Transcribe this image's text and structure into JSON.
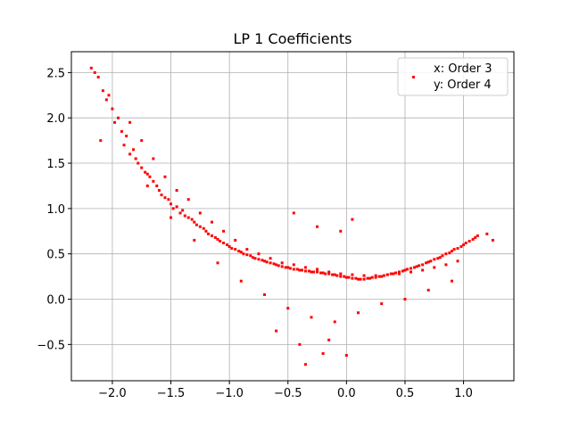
{
  "chart_data": {
    "type": "scatter",
    "title": "LP 1 Coefficients",
    "xlabel": "",
    "ylabel": "",
    "xlim": [
      -2.35,
      1.43
    ],
    "ylim": [
      -0.9,
      2.73
    ],
    "xticks": [
      -2.0,
      -1.5,
      -1.0,
      -0.5,
      0.0,
      0.5,
      1.0
    ],
    "xtick_labels": [
      "−2.0",
      "−1.5",
      "−1.0",
      "−0.5",
      "0.0",
      "0.5",
      "1.0"
    ],
    "yticks": [
      -0.5,
      0.0,
      0.5,
      1.0,
      1.5,
      2.0,
      2.5
    ],
    "ytick_labels": [
      "−0.5",
      "0.0",
      "0.5",
      "1.0",
      "1.5",
      "2.0",
      "2.5"
    ],
    "grid": true,
    "legend": {
      "placement": "top-right",
      "entries": [
        "x: Order 3",
        "y: Order 4"
      ]
    },
    "marker_color": "#ff0000",
    "series": [
      {
        "name": "x: Order 3 / y: Order 4",
        "x": [
          -2.18,
          -2.15,
          -2.12,
          -2.1,
          -2.08,
          -2.05,
          -2.03,
          -2.0,
          -1.98,
          -1.95,
          -1.92,
          -1.9,
          -1.88,
          -1.85,
          -1.82,
          -1.8,
          -1.78,
          -1.75,
          -1.72,
          -1.7,
          -1.68,
          -1.65,
          -1.62,
          -1.6,
          -1.58,
          -1.55,
          -1.52,
          -1.5,
          -1.48,
          -1.45,
          -1.42,
          -1.4,
          -1.38,
          -1.35,
          -1.32,
          -1.3,
          -1.28,
          -1.25,
          -1.22,
          -1.2,
          -1.18,
          -1.15,
          -1.12,
          -1.1,
          -1.08,
          -1.05,
          -1.02,
          -1.0,
          -0.98,
          -0.95,
          -0.92,
          -0.9,
          -0.88,
          -0.85,
          -0.82,
          -0.8,
          -0.78,
          -0.75,
          -0.72,
          -0.7,
          -0.68,
          -0.65,
          -0.62,
          -0.6,
          -0.58,
          -0.55,
          -0.52,
          -0.5,
          -0.48,
          -0.45,
          -0.42,
          -0.4,
          -0.38,
          -0.35,
          -0.32,
          -0.3,
          -0.28,
          -0.25,
          -0.22,
          -0.2,
          -0.18,
          -0.15,
          -0.12,
          -0.1,
          -0.08,
          -0.05,
          -0.02,
          0.0,
          0.02,
          0.05,
          0.08,
          0.1,
          0.12,
          0.15,
          0.18,
          0.2,
          0.22,
          0.25,
          0.28,
          0.3,
          0.32,
          0.35,
          0.38,
          0.4,
          0.42,
          0.45,
          0.48,
          0.5,
          0.52,
          0.55,
          0.58,
          0.6,
          0.62,
          0.65,
          0.68,
          0.7,
          0.72,
          0.75,
          0.78,
          0.8,
          0.82,
          0.85,
          0.88,
          0.9,
          0.92,
          0.95,
          0.98,
          1.0,
          1.02,
          1.05,
          1.08,
          1.1,
          1.12,
          1.2,
          1.25,
          -1.85,
          -1.75,
          -1.65,
          -1.55,
          -1.45,
          -1.35,
          -1.25,
          -1.15,
          -1.05,
          -0.95,
          -0.85,
          -0.75,
          -0.65,
          -0.55,
          -0.45,
          -0.35,
          -0.25,
          -0.15,
          -0.05,
          0.05,
          0.15,
          0.25,
          0.35,
          0.45,
          0.55,
          0.65,
          0.75,
          0.85,
          0.95,
          -1.7,
          -1.5,
          -1.3,
          -1.1,
          -0.9,
          -0.7,
          -0.5,
          -0.3,
          -0.1,
          0.1,
          0.3,
          0.5,
          0.7,
          0.9,
          -0.6,
          -0.4,
          -0.2,
          -0.35,
          -0.15,
          0.0,
          -0.25,
          -0.45,
          0.05,
          -0.05
        ],
        "y": [
          2.55,
          2.5,
          2.45,
          1.75,
          2.3,
          2.2,
          2.25,
          2.1,
          1.95,
          2.0,
          1.85,
          1.7,
          1.8,
          1.6,
          1.65,
          1.55,
          1.5,
          1.45,
          1.4,
          1.38,
          1.35,
          1.3,
          1.25,
          1.2,
          1.15,
          1.12,
          1.1,
          1.05,
          1.0,
          1.02,
          0.95,
          0.98,
          0.92,
          0.9,
          0.88,
          0.85,
          0.82,
          0.8,
          0.78,
          0.75,
          0.72,
          0.7,
          0.68,
          0.66,
          0.64,
          0.62,
          0.6,
          0.58,
          0.56,
          0.55,
          0.53,
          0.52,
          0.5,
          0.49,
          0.48,
          0.46,
          0.45,
          0.44,
          0.43,
          0.42,
          0.41,
          0.4,
          0.39,
          0.38,
          0.37,
          0.36,
          0.35,
          0.35,
          0.34,
          0.33,
          0.33,
          0.32,
          0.32,
          0.31,
          0.31,
          0.3,
          0.3,
          0.3,
          0.29,
          0.29,
          0.28,
          0.28,
          0.27,
          0.27,
          0.26,
          0.25,
          0.25,
          0.24,
          0.24,
          0.23,
          0.23,
          0.22,
          0.22,
          0.22,
          0.23,
          0.23,
          0.24,
          0.24,
          0.25,
          0.25,
          0.26,
          0.27,
          0.28,
          0.28,
          0.29,
          0.3,
          0.31,
          0.32,
          0.33,
          0.34,
          0.35,
          0.36,
          0.37,
          0.38,
          0.4,
          0.41,
          0.42,
          0.44,
          0.45,
          0.46,
          0.48,
          0.5,
          0.51,
          0.53,
          0.55,
          0.56,
          0.58,
          0.6,
          0.62,
          0.64,
          0.66,
          0.68,
          0.7,
          0.72,
          0.65,
          1.95,
          1.75,
          1.55,
          1.35,
          1.2,
          1.1,
          0.95,
          0.85,
          0.75,
          0.65,
          0.55,
          0.5,
          0.45,
          0.4,
          0.38,
          0.35,
          0.33,
          0.3,
          0.28,
          0.27,
          0.26,
          0.26,
          0.27,
          0.28,
          0.3,
          0.32,
          0.35,
          0.38,
          0.42,
          1.25,
          0.9,
          0.65,
          0.4,
          0.2,
          0.05,
          -0.1,
          -0.2,
          -0.25,
          -0.15,
          -0.05,
          0.0,
          0.1,
          0.2,
          -0.35,
          -0.5,
          -0.6,
          -0.72,
          -0.45,
          -0.62,
          0.8,
          0.95,
          0.88,
          0.75
        ]
      }
    ]
  }
}
